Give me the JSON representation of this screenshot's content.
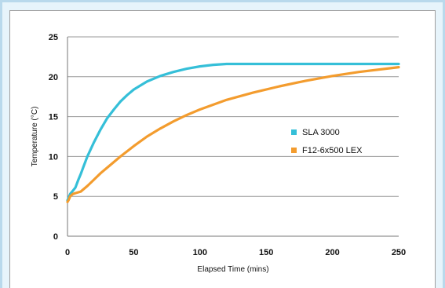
{
  "chart_data": {
    "type": "line",
    "title": "",
    "xlabel": "Elapsed Time (mins)",
    "ylabel": "Temperature (°C)",
    "xlim": [
      0,
      250
    ],
    "ylim": [
      0,
      25
    ],
    "xticks": [
      0,
      50,
      100,
      150,
      200,
      250
    ],
    "yticks": [
      0,
      5,
      10,
      15,
      20,
      25
    ],
    "grid": "horizontal",
    "legend_position": "right",
    "series": [
      {
        "name": "SLA 3000",
        "color": "#35bfd8",
        "x": [
          0,
          1,
          2,
          4,
          6,
          8,
          10,
          12,
          15,
          20,
          25,
          30,
          35,
          40,
          45,
          50,
          55,
          60,
          70,
          80,
          90,
          100,
          110,
          120,
          150,
          200,
          250
        ],
        "y": [
          4.5,
          4.9,
          5.3,
          5.7,
          6.1,
          7.0,
          7.8,
          8.7,
          10.0,
          11.8,
          13.4,
          14.8,
          15.9,
          16.9,
          17.7,
          18.4,
          18.9,
          19.4,
          20.1,
          20.6,
          21.0,
          21.3,
          21.5,
          21.6,
          21.6,
          21.6,
          21.6
        ]
      },
      {
        "name": "F12-6x500 LEX",
        "color": "#f39c2e",
        "x": [
          0,
          1,
          2,
          4,
          6,
          8,
          10,
          15,
          20,
          25,
          30,
          40,
          50,
          60,
          70,
          80,
          90,
          100,
          120,
          140,
          160,
          180,
          200,
          220,
          250
        ],
        "y": [
          4.3,
          4.6,
          5.0,
          5.3,
          5.4,
          5.5,
          5.6,
          6.3,
          7.1,
          7.9,
          8.6,
          10.0,
          11.3,
          12.5,
          13.5,
          14.4,
          15.2,
          15.9,
          17.1,
          18.0,
          18.8,
          19.5,
          20.1,
          20.6,
          21.2
        ]
      }
    ]
  }
}
